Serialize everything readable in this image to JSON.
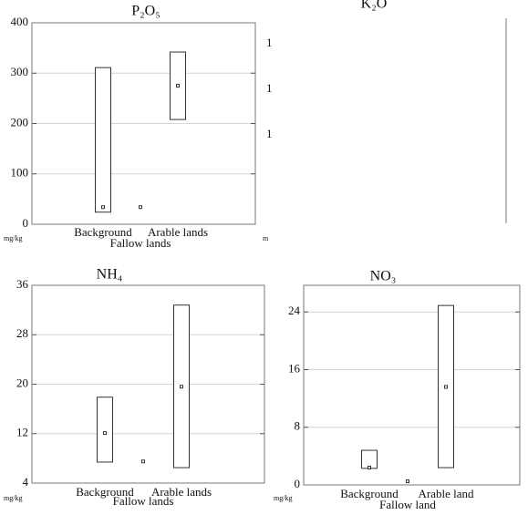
{
  "chart_data": [
    {
      "type": "box",
      "title": "P₂O₅",
      "unit": "mg/kg",
      "categories": [
        "Background",
        "Fallow lands",
        "Arable lands"
      ],
      "low": [
        24,
        null,
        208
      ],
      "high": [
        311,
        null,
        342
      ],
      "point": [
        34,
        34,
        275
      ],
      "ylim": [
        0,
        400
      ],
      "yticks": [
        0,
        100,
        200,
        300,
        400
      ],
      "grid": true
    },
    {
      "type": "blank",
      "title": "K₂O",
      "unit": "m",
      "tick_fragments": [
        "1",
        "1",
        "1"
      ]
    },
    {
      "type": "box",
      "title": "NH₄",
      "unit": "mg/kg",
      "categories": [
        "Background",
        "Fallow lands",
        "Arable lands"
      ],
      "low": [
        7.4,
        null,
        6.5
      ],
      "high": [
        17.9,
        null,
        32.8
      ],
      "point": [
        12.1,
        7.5,
        19.6
      ],
      "ylim": [
        4,
        36
      ],
      "yticks": [
        4,
        12,
        20,
        28,
        36
      ],
      "grid": true
    },
    {
      "type": "box",
      "title": "NO₃",
      "unit": "mg/kg",
      "categories": [
        "Background",
        "Fallow land",
        "Arable land"
      ],
      "low": [
        2.3,
        null,
        2.4
      ],
      "high": [
        4.8,
        null,
        24.9
      ],
      "point": [
        2.4,
        0.5,
        13.6
      ],
      "ylim": [
        0,
        27.7
      ],
      "yticks": [
        0,
        8,
        16,
        24
      ],
      "grid": true
    }
  ]
}
